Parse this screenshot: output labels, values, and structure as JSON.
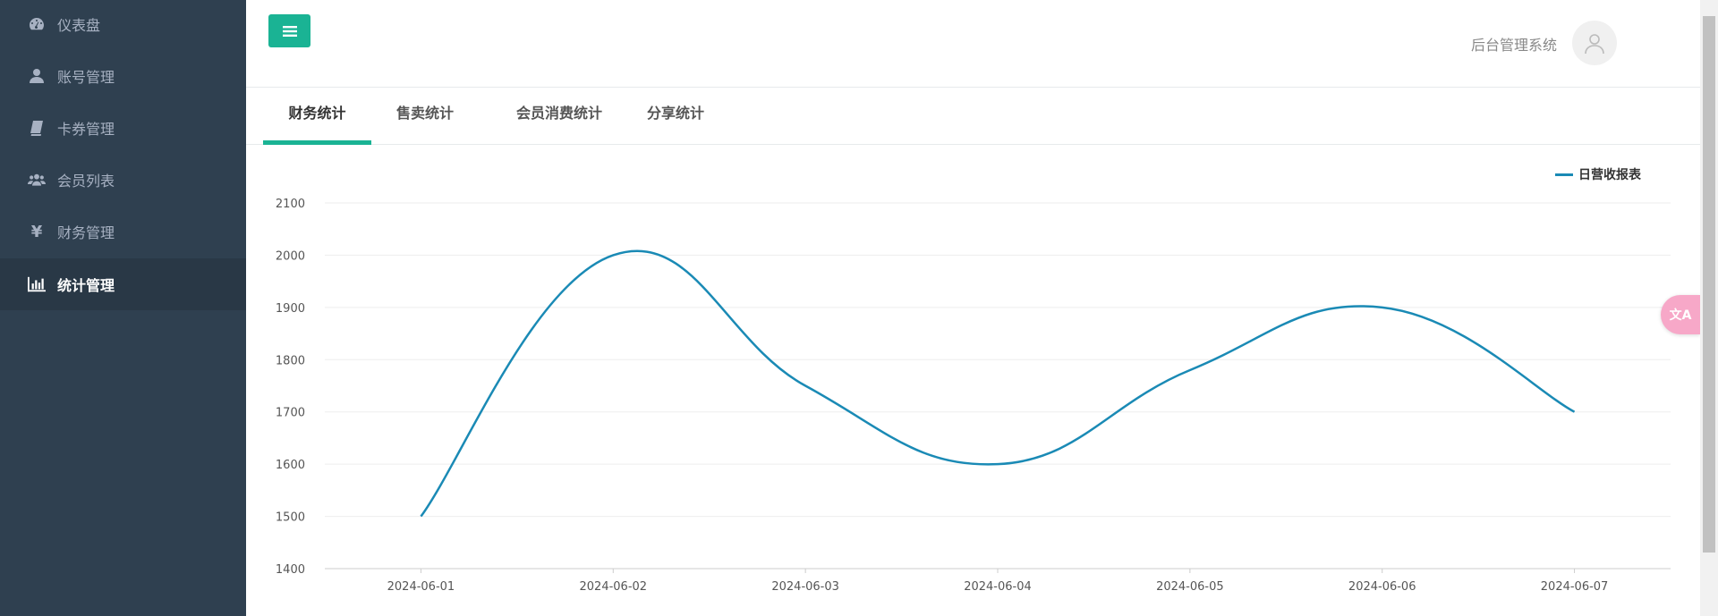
{
  "sidebar": {
    "items": [
      {
        "label": "仪表盘",
        "icon": "dashboard-icon"
      },
      {
        "label": "账号管理",
        "icon": "user-icon"
      },
      {
        "label": "卡券管理",
        "icon": "book-icon"
      },
      {
        "label": "会员列表",
        "icon": "users-icon"
      },
      {
        "label": "财务管理",
        "icon": "yen-icon"
      },
      {
        "label": "统计管理",
        "icon": "bar-chart-icon",
        "active": true
      }
    ]
  },
  "header": {
    "system_title": "后台管理系统"
  },
  "tabs": [
    {
      "label": "财务统计",
      "active": true
    },
    {
      "label": "售卖统计"
    },
    {
      "label": "会员消费统计"
    },
    {
      "label": "分享统计"
    }
  ],
  "colors": {
    "accent": "#1ab394",
    "sidebar": "#2f4050",
    "series": "#1a8ab5"
  },
  "chart_data": {
    "type": "line",
    "categories": [
      "2024-06-01",
      "2024-06-02",
      "2024-06-03",
      "2024-06-04",
      "2024-06-05",
      "2024-06-06",
      "2024-06-07"
    ],
    "series": [
      {
        "name": "日营收报表",
        "values": [
          1500,
          2000,
          1750,
          1600,
          1780,
          1900,
          1700
        ]
      }
    ],
    "ylim": [
      1400,
      2100
    ],
    "yticks": [
      "1400",
      "1500",
      "1600",
      "1700",
      "1800",
      "1900",
      "2000",
      "2100"
    ],
    "smooth": true,
    "grid": true,
    "legend": "top-right"
  }
}
